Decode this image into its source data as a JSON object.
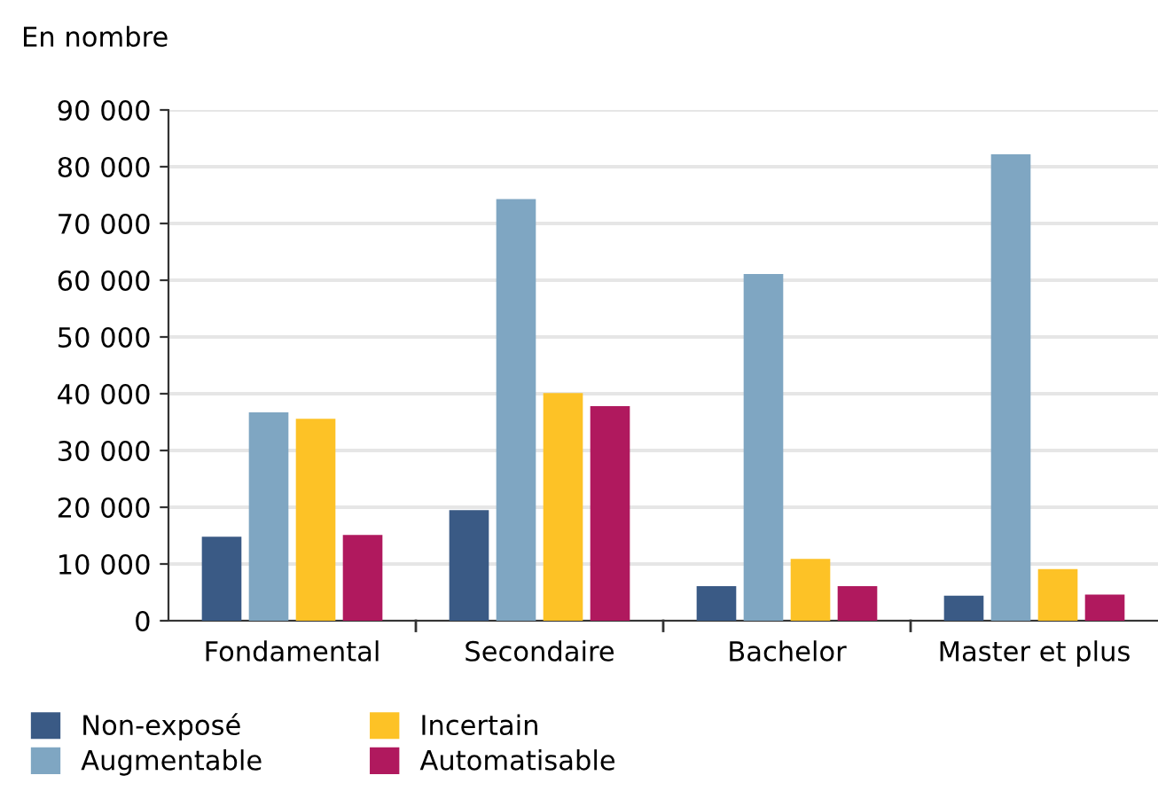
{
  "chart_data": {
    "type": "bar",
    "ylabel": "En nombre",
    "categories": [
      "Fondamental",
      "Secondaire",
      "Bachelor",
      "Master et plus"
    ],
    "series": [
      {
        "name": "Non-exposé",
        "color": "#3a5a85",
        "values": [
          14800,
          19500,
          6100,
          4400
        ]
      },
      {
        "name": "Augmentable",
        "color": "#7fa6c2",
        "values": [
          36700,
          74300,
          61100,
          82200
        ]
      },
      {
        "name": "Incertain",
        "color": "#fdc226",
        "values": [
          35600,
          40100,
          10900,
          9100
        ]
      },
      {
        "name": "Automatisable",
        "color": "#b0195e",
        "values": [
          15100,
          37800,
          6100,
          4600
        ]
      }
    ],
    "ylim": [
      0,
      90000
    ],
    "yticks": [
      0,
      {
        "value": 10000,
        "label": "10 000"
      },
      {
        "value": 20000,
        "label": "20 000"
      },
      {
        "value": 30000,
        "label": "30 000"
      },
      {
        "value": 40000,
        "label": "40 000"
      },
      {
        "value": 50000,
        "label": "50 000"
      },
      {
        "value": 60000,
        "label": "60 000"
      },
      {
        "value": 70000,
        "label": "70 000"
      },
      {
        "value": 80000,
        "label": "80 000"
      },
      {
        "value": 90000,
        "label": "90 000"
      }
    ],
    "grid": "y",
    "legend": "bottom"
  }
}
